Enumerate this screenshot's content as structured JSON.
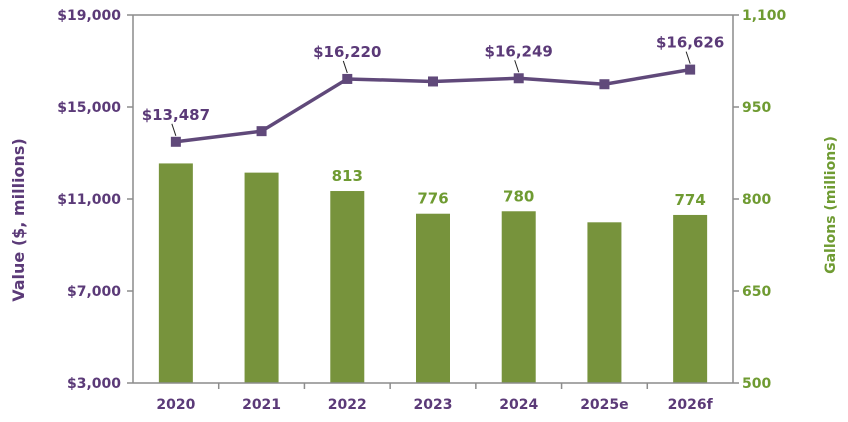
{
  "chart_data": {
    "type": "bar+line",
    "categories": [
      "2020",
      "2021",
      "2022",
      "2023",
      "2024",
      "2025e",
      "2026f"
    ],
    "series": [
      {
        "name": "Gallons (millions)",
        "type": "bar",
        "axis": "right",
        "color": "#77933c",
        "values": [
          858,
          843,
          813,
          776,
          780,
          762,
          774
        ],
        "labels": [
          "",
          "",
          "813",
          "776",
          "780",
          "",
          "774"
        ]
      },
      {
        "name": "Value ($, millions)",
        "type": "line",
        "axis": "left",
        "color": "#60497a",
        "values": [
          13487,
          13950,
          16220,
          16110,
          16249,
          15990,
          16626
        ],
        "labels": [
          "$13,487",
          "",
          "$16,220",
          "",
          "$16,249",
          "",
          "$16,626"
        ]
      }
    ],
    "y_left": {
      "label": "Value ($, millions)",
      "range": [
        3000,
        19000
      ],
      "ticks": [
        3000,
        7000,
        11000,
        15000,
        19000
      ],
      "tick_labels": [
        "$3,000",
        "$7,000",
        "$11,000",
        "$15,000",
        "$19,000"
      ]
    },
    "y_right": {
      "label": "Gallons (millions)",
      "range": [
        500,
        1100
      ],
      "ticks": [
        500,
        650,
        800,
        950,
        1100
      ],
      "tick_labels": [
        "500",
        "650",
        "800",
        "950",
        "1,100"
      ]
    },
    "grid": false,
    "legend": "none"
  }
}
